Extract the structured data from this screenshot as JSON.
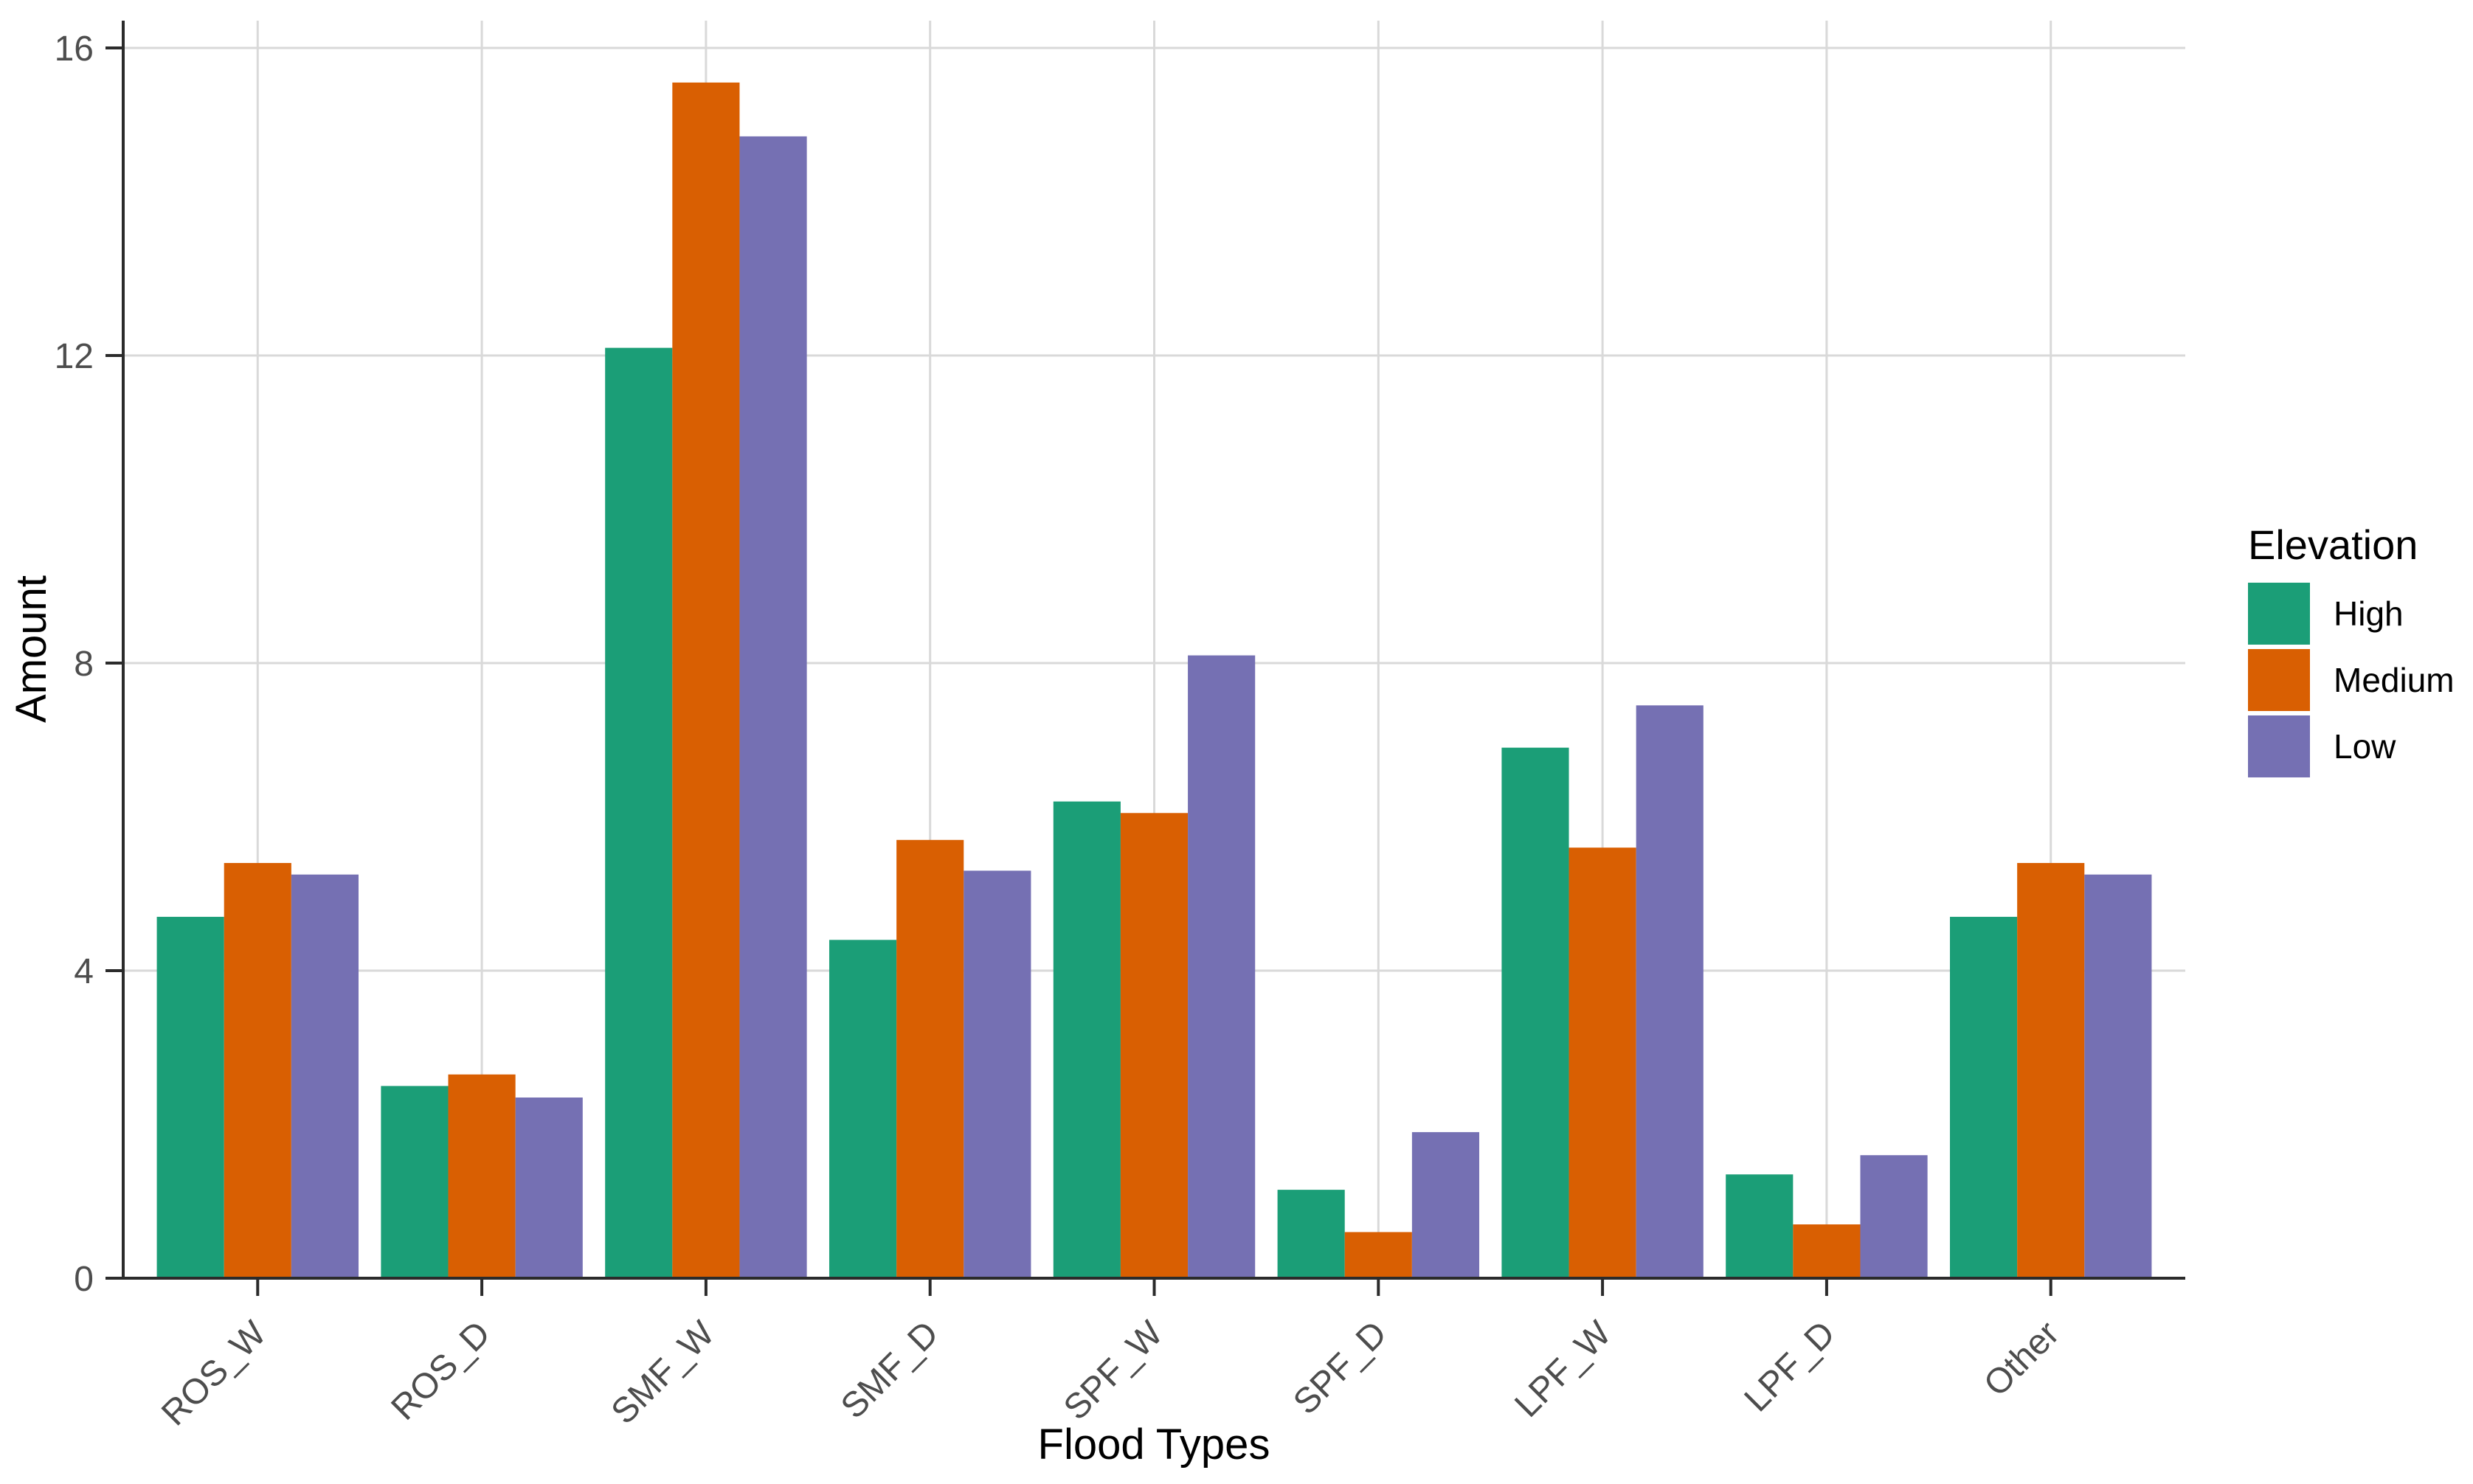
{
  "chart_data": {
    "type": "bar",
    "title": "",
    "xlabel": "Flood Types",
    "ylabel": "Amount",
    "legend_title": "Elevation",
    "legend_position": "right",
    "grid": "major gridlines only; horizontal at y ticks, vertical at category centers",
    "background": "#ffffff",
    "gridline_color": "#d9d9d9",
    "axis_color": "#2b2b2b",
    "tick_label_color": "#4d4d4d",
    "ylim": [
      0,
      16
    ],
    "yticks": [
      0,
      4,
      8,
      12,
      16
    ],
    "categories": [
      "ROS_W",
      "ROS_D",
      "SMF_W",
      "SMF_D",
      "SPF_W",
      "SPF_D",
      "LPF_W",
      "LPF_D",
      "Other"
    ],
    "series": [
      {
        "name": "High",
        "color": "#1B9E77",
        "values": [
          4.7,
          2.5,
          12.1,
          4.4,
          6.2,
          1.15,
          6.9,
          1.35,
          4.7
        ]
      },
      {
        "name": "Medium",
        "color": "#D95F02",
        "values": [
          5.4,
          2.65,
          15.55,
          5.7,
          6.05,
          0.6,
          5.6,
          0.7,
          5.4
        ]
      },
      {
        "name": "Low",
        "color": "#7570B3",
        "values": [
          5.25,
          2.35,
          14.85,
          5.3,
          8.1,
          1.9,
          7.45,
          1.6,
          5.25
        ]
      }
    ]
  }
}
